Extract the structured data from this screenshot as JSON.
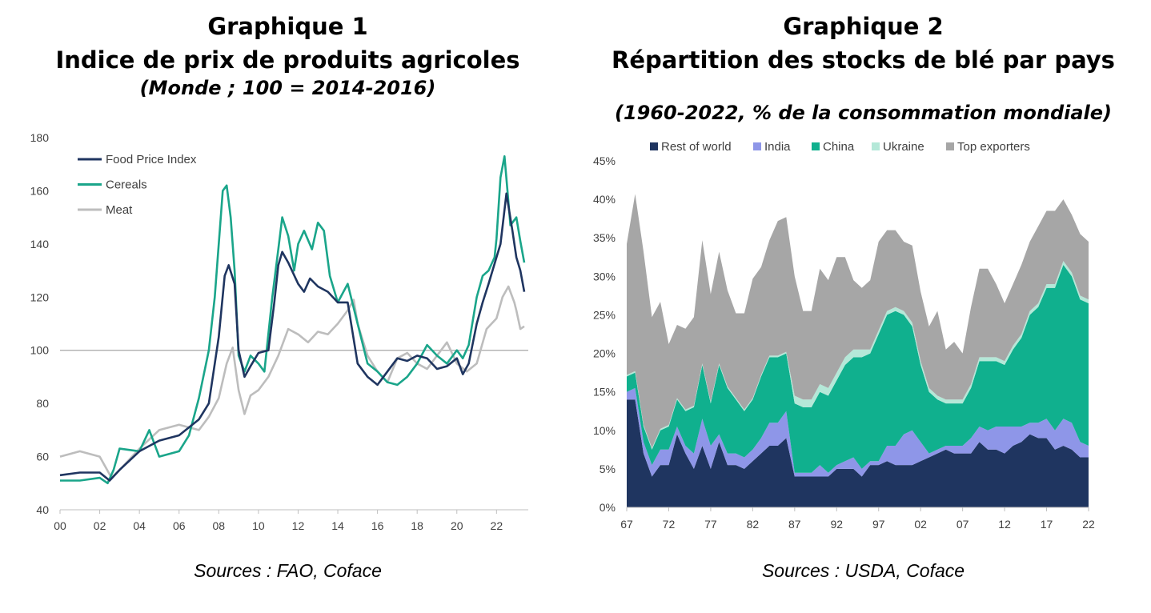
{
  "charts": [
    {
      "heading": "Graphique 1",
      "subtitle": "Indice de prix de produits agricoles",
      "note": "(Monde ; 100 = 2014-2016)",
      "source": "Sources : FAO, Coface"
    },
    {
      "heading": "Graphique 2",
      "subtitle": "Répartition des stocks de blé par pays",
      "note": "(1960-2022, % de la consommation mondiale)",
      "source": "Sources : USDA, Coface"
    }
  ],
  "chart_data": [
    {
      "type": "line",
      "ylim": [
        40,
        180
      ],
      "yticks": [
        "40",
        "60",
        "80",
        "100",
        "120",
        "140",
        "160",
        "180"
      ],
      "xlim": [
        2000,
        2023.6
      ],
      "xticks": [
        "00",
        "02",
        "04",
        "06",
        "08",
        "10",
        "12",
        "14",
        "16",
        "18",
        "20",
        "22"
      ],
      "reference_line": 100,
      "grid": false,
      "legend": "top-left",
      "series": [
        {
          "name": "Food Price Index",
          "color": "#1f3560",
          "x": [
            2000,
            2001,
            2002,
            2002.5,
            2003,
            2004,
            2005,
            2006,
            2007,
            2007.5,
            2008,
            2008.3,
            2008.5,
            2008.8,
            2009,
            2009.3,
            2009.6,
            2010,
            2010.5,
            2010.8,
            2011,
            2011.2,
            2011.5,
            2012,
            2012.3,
            2012.6,
            2013,
            2013.5,
            2014,
            2014.5,
            2015,
            2015.5,
            2016,
            2016.5,
            2017,
            2017.5,
            2018,
            2018.5,
            2019,
            2019.5,
            2020,
            2020.3,
            2020.6,
            2021,
            2021.3,
            2021.6,
            2022,
            2022.2,
            2022.5,
            2022.8,
            2023,
            2023.2,
            2023.4
          ],
          "y": [
            53,
            54,
            54,
            51,
            55,
            62,
            66,
            68,
            74,
            80,
            105,
            128,
            132,
            125,
            100,
            90,
            94,
            99,
            100,
            118,
            132,
            137,
            133,
            125,
            122,
            127,
            124,
            122,
            118,
            118,
            95,
            90,
            87,
            92,
            97,
            96,
            98,
            97,
            93,
            94,
            97,
            91,
            95,
            110,
            118,
            125,
            135,
            140,
            159,
            145,
            135,
            130,
            122
          ]
        },
        {
          "name": "Cereals",
          "color": "#1aa58a",
          "x": [
            2000,
            2001,
            2002,
            2002.4,
            2002.7,
            2003,
            2004,
            2004.5,
            2005,
            2006,
            2006.5,
            2007,
            2007.5,
            2007.8,
            2008,
            2008.2,
            2008.4,
            2008.6,
            2008.8,
            2009,
            2009.3,
            2009.6,
            2010,
            2010.3,
            2010.7,
            2011,
            2011.2,
            2011.5,
            2011.8,
            2012,
            2012.3,
            2012.7,
            2013,
            2013.3,
            2013.6,
            2014,
            2014.5,
            2015,
            2015.5,
            2016,
            2016.5,
            2017,
            2017.5,
            2018,
            2018.5,
            2019,
            2019.5,
            2020,
            2020.3,
            2020.6,
            2021,
            2021.3,
            2021.6,
            2021.9,
            2022,
            2022.2,
            2022.4,
            2022.7,
            2023,
            2023.2,
            2023.4
          ],
          "y": [
            51,
            51,
            52,
            50,
            55,
            63,
            62,
            70,
            60,
            62,
            68,
            82,
            100,
            120,
            140,
            160,
            162,
            150,
            130,
            98,
            92,
            98,
            95,
            92,
            120,
            138,
            150,
            143,
            130,
            140,
            145,
            138,
            148,
            145,
            128,
            118,
            125,
            110,
            95,
            92,
            88,
            87,
            90,
            95,
            102,
            98,
            95,
            100,
            97,
            102,
            120,
            128,
            130,
            135,
            142,
            165,
            173,
            147,
            150,
            141,
            133
          ]
        },
        {
          "name": "Meat",
          "color": "#bdbdbd",
          "x": [
            2000,
            2001,
            2002,
            2002.6,
            2003,
            2004,
            2005,
            2006,
            2007,
            2007.5,
            2008,
            2008.4,
            2008.7,
            2009,
            2009.3,
            2009.6,
            2010,
            2010.5,
            2011,
            2011.5,
            2012,
            2012.5,
            2013,
            2013.5,
            2014,
            2014.5,
            2014.8,
            2015,
            2015.5,
            2016,
            2016.5,
            2017,
            2017.5,
            2018,
            2018.5,
            2019,
            2019.5,
            2020,
            2020.5,
            2021,
            2021.5,
            2022,
            2022.3,
            2022.6,
            2022.9,
            2023,
            2023.2,
            2023.4
          ],
          "y": [
            60,
            62,
            60,
            52,
            55,
            63,
            70,
            72,
            70,
            75,
            82,
            95,
            101,
            85,
            76,
            83,
            85,
            90,
            98,
            108,
            106,
            103,
            107,
            106,
            110,
            115,
            119,
            110,
            98,
            92,
            88,
            97,
            99,
            95,
            93,
            98,
            103,
            95,
            92,
            95,
            108,
            112,
            120,
            124,
            118,
            115,
            108,
            109
          ]
        }
      ]
    },
    {
      "type": "area",
      "stacked": true,
      "ylim": [
        0,
        45
      ],
      "yticks": [
        "0%",
        "5%",
        "10%",
        "15%",
        "20%",
        "25%",
        "30%",
        "35%",
        "40%",
        "45%"
      ],
      "xticks": [
        "67",
        "72",
        "77",
        "82",
        "87",
        "92",
        "97",
        "02",
        "07",
        "12",
        "17",
        "22"
      ],
      "legend": "top",
      "grid": false,
      "x": [
        1967,
        1968,
        1969,
        1970,
        1971,
        1972,
        1973,
        1974,
        1975,
        1976,
        1977,
        1978,
        1979,
        1980,
        1981,
        1982,
        1983,
        1984,
        1985,
        1986,
        1987,
        1988,
        1989,
        1990,
        1991,
        1992,
        1993,
        1994,
        1995,
        1996,
        1997,
        1998,
        1999,
        2000,
        2001,
        2002,
        2003,
        2004,
        2005,
        2006,
        2007,
        2008,
        2009,
        2010,
        2011,
        2012,
        2013,
        2014,
        2015,
        2016,
        2017,
        2018,
        2019,
        2020,
        2021,
        2022
      ],
      "series": [
        {
          "name": "Rest of world",
          "color": "#1f3560",
          "values": [
            14,
            14,
            7,
            4,
            5.5,
            5.5,
            9.5,
            7,
            5,
            8,
            5,
            8.5,
            5.5,
            5.5,
            5,
            6,
            7,
            8,
            8,
            9,
            4,
            4,
            4,
            4,
            4,
            5,
            5,
            5,
            4,
            5.5,
            5.5,
            6,
            5.5,
            5.5,
            5.5,
            6,
            6.5,
            7,
            7.5,
            7,
            7,
            7,
            8.5,
            7.5,
            7.5,
            7,
            8,
            8.5,
            9.5,
            9,
            9,
            7.5,
            8,
            7.5,
            6.5,
            6.5
          ]
        },
        {
          "name": "India",
          "color": "#8e96e8",
          "values": [
            1,
            1.5,
            1.5,
            1.5,
            2,
            2,
            1,
            1,
            2,
            3.5,
            3,
            1,
            1.5,
            1.5,
            1.5,
            1.5,
            2,
            3,
            3,
            3.5,
            0.5,
            0.5,
            0.5,
            1.5,
            0.5,
            0.5,
            1,
            1.5,
            1,
            0.5,
            0.5,
            2,
            2.5,
            4,
            4.5,
            2.5,
            0.5,
            0.5,
            0.5,
            1,
            1,
            2,
            2,
            2.5,
            3,
            3.5,
            2.5,
            2,
            1.5,
            2,
            2.5,
            2.5,
            3.5,
            3.5,
            2,
            1.5
          ]
        },
        {
          "name": "China",
          "color": "#10b08e",
          "values": [
            2,
            2,
            2,
            2,
            2.5,
            3,
            3.5,
            4.5,
            6,
            7,
            5.5,
            9,
            8.5,
            7,
            6,
            6.5,
            8,
            8.5,
            8.5,
            7.5,
            9,
            8.5,
            8.5,
            9.5,
            10,
            11,
            12.5,
            13,
            14.5,
            14,
            16.5,
            17,
            17.5,
            15.5,
            13.5,
            10,
            8,
            6.5,
            5.5,
            5.5,
            5.5,
            6.5,
            8.5,
            9,
            8.5,
            8,
            10,
            11.5,
            14,
            15,
            17,
            18.5,
            20,
            19,
            18.5,
            18.5
          ]
        },
        {
          "name": "Ukraine",
          "color": "#b4e8d8",
          "values": [
            0.2,
            0.2,
            0.2,
            0.2,
            0.2,
            0.2,
            0.2,
            0.2,
            0.2,
            0.2,
            0.2,
            0.2,
            0.2,
            0.2,
            0.2,
            0.2,
            0.2,
            0.2,
            0.2,
            0.2,
            1,
            1,
            1,
            1,
            1,
            1,
            1,
            1,
            1,
            0.5,
            0.5,
            0.5,
            0.5,
            0.5,
            0.5,
            0.5,
            0.5,
            0.5,
            0.5,
            0.5,
            0.5,
            0.5,
            0.5,
            0.5,
            0.5,
            0.5,
            0.5,
            0.5,
            0.5,
            0.5,
            0.5,
            0.5,
            0.5,
            0.5,
            0.5,
            0.5
          ]
        },
        {
          "name": "Top exporters",
          "color": "#a6a6a6",
          "values": [
            17,
            23,
            22.5,
            17,
            16.5,
            10.5,
            9.5,
            10.5,
            11.5,
            16,
            14,
            14.5,
            12.5,
            11,
            12.5,
            15.5,
            14,
            15,
            17.5,
            17.5,
            15.5,
            11.5,
            11.5,
            15,
            14,
            15,
            13,
            9,
            8,
            9,
            11.5,
            10.5,
            10,
            9,
            10,
            9,
            8,
            11,
            6.5,
            7.5,
            6,
            10,
            11.5,
            11.5,
            9.5,
            7.5,
            8,
            9,
            9,
            10,
            9.5,
            9.5,
            8,
            7.5,
            8,
            7.5
          ]
        }
      ]
    }
  ]
}
